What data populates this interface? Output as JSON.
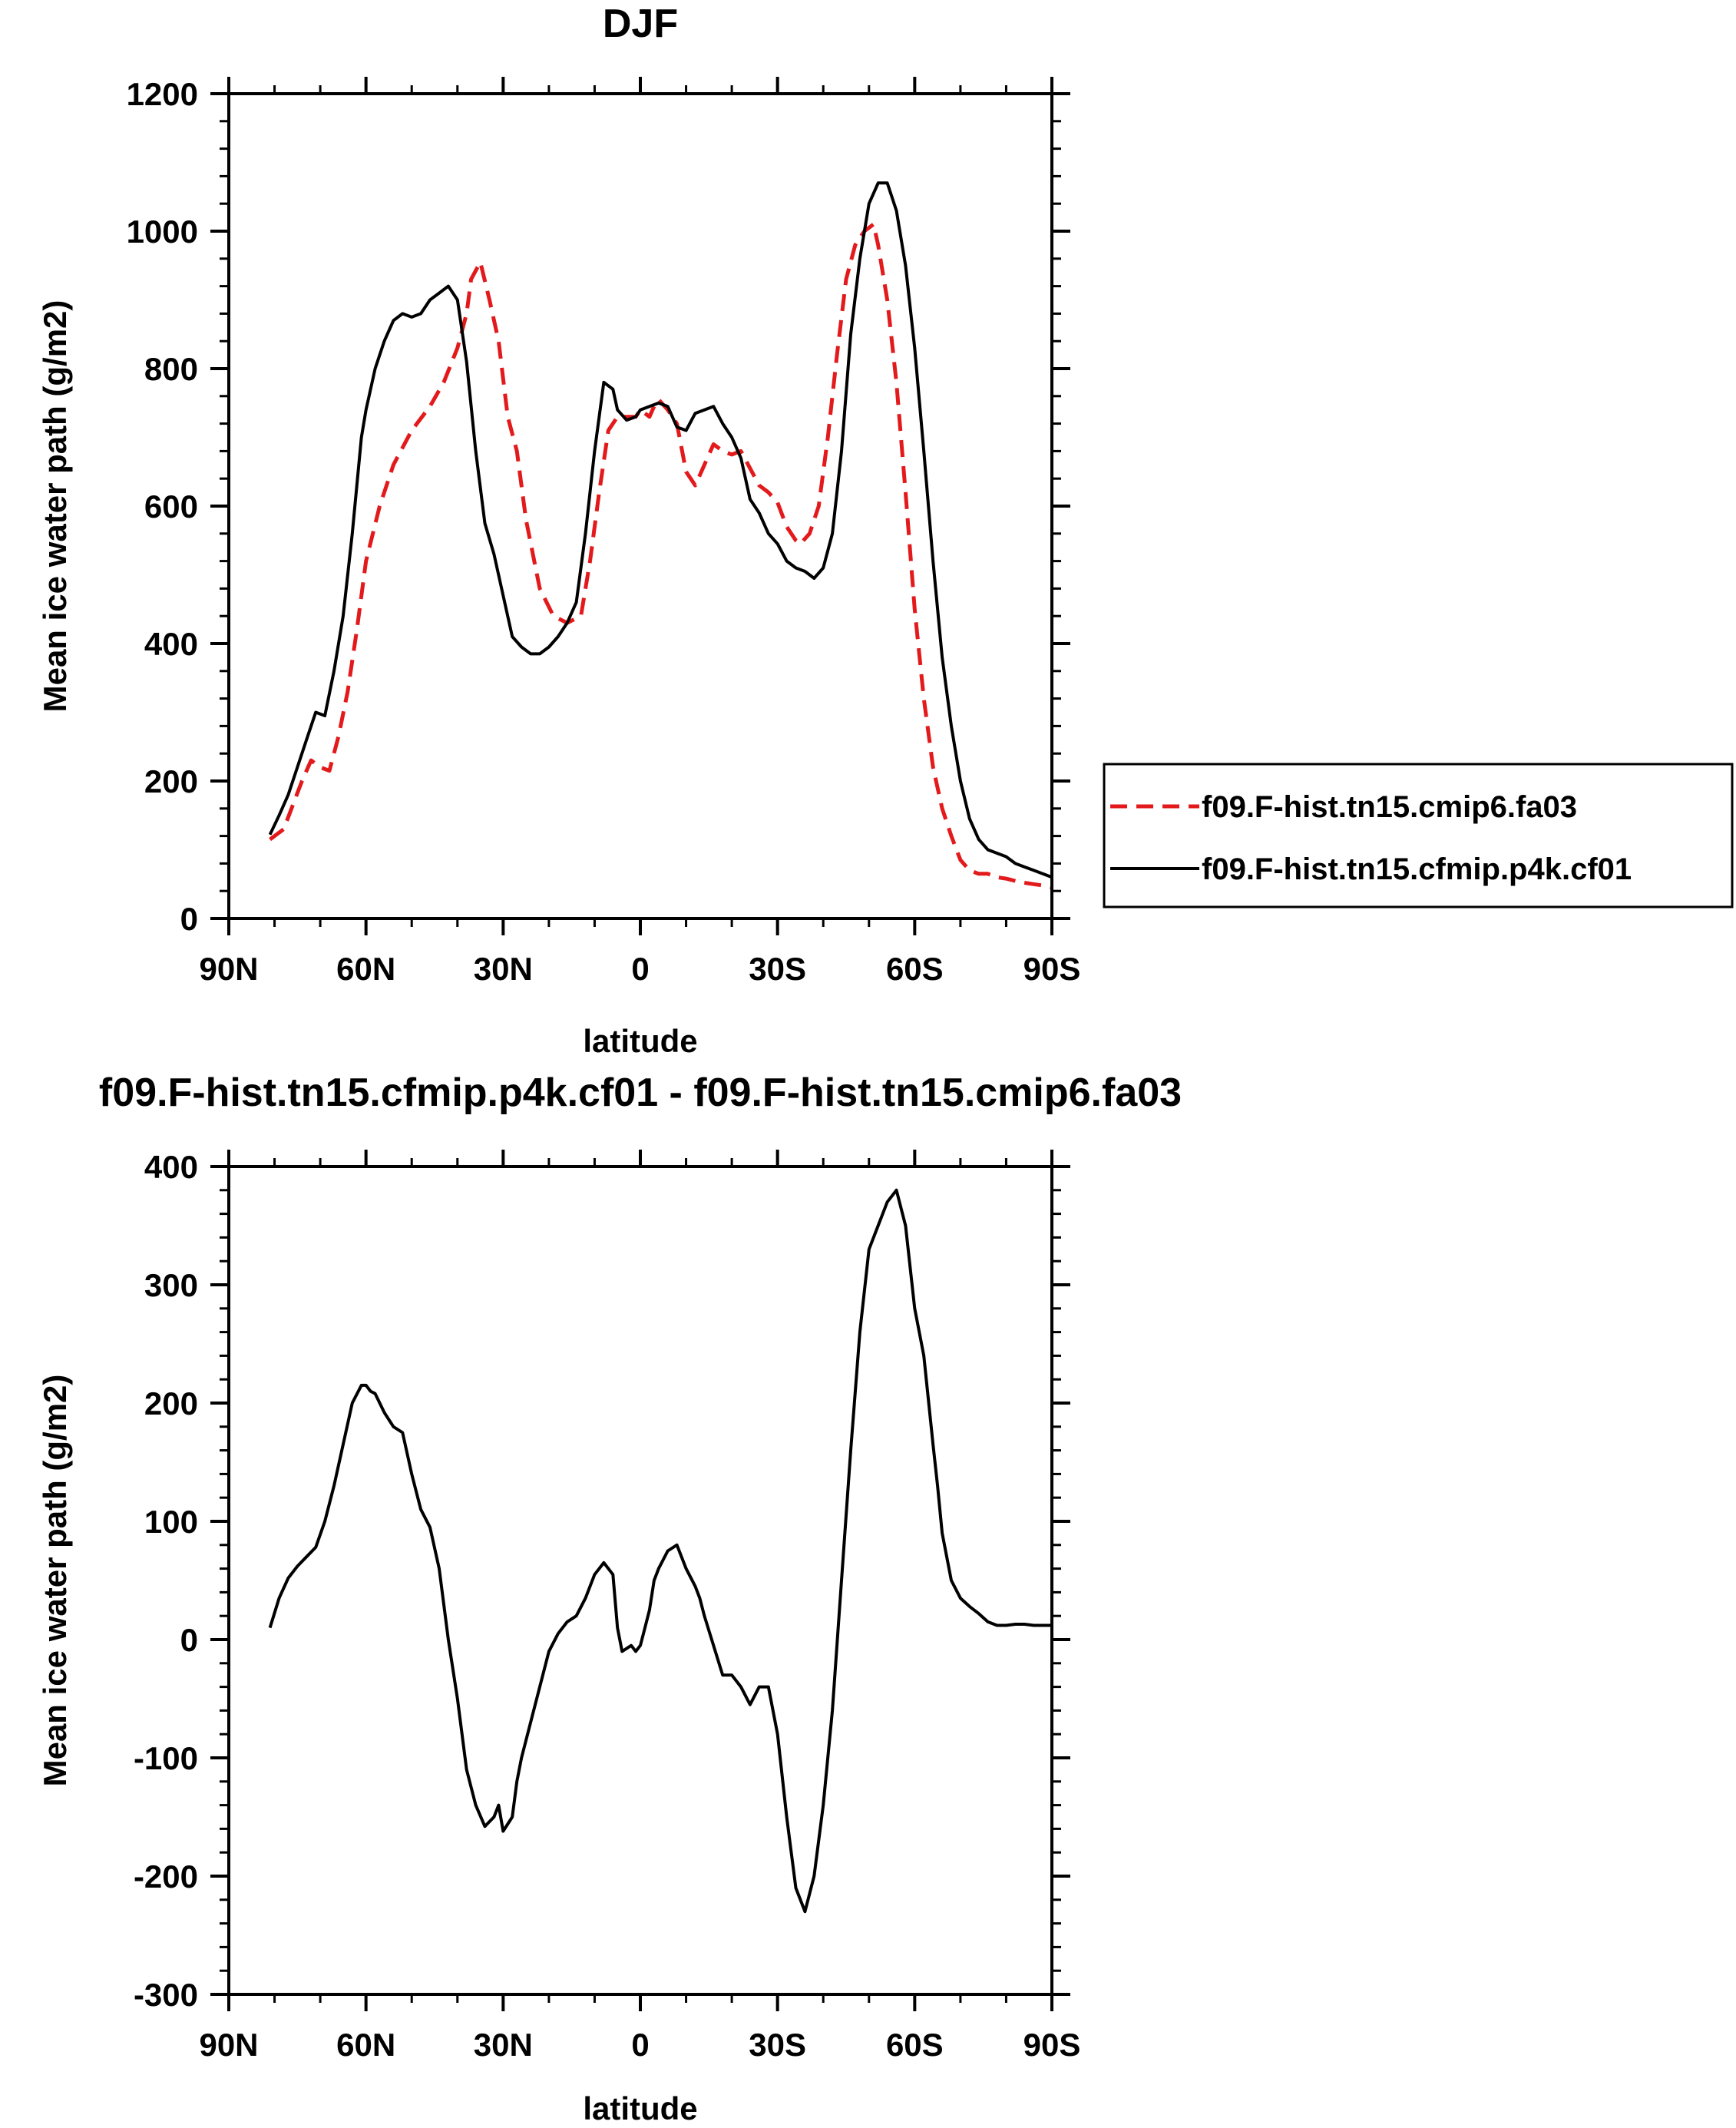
{
  "chart_data": [
    {
      "type": "line",
      "title": "DJF",
      "xlabel": "latitude",
      "ylabel": "Mean ice water path (g/m2)",
      "x_direction": "descending (90N to 90S)",
      "xlim": [
        90,
        -90
      ],
      "ylim": [
        0,
        1200
      ],
      "xticks": [
        90,
        60,
        30,
        0,
        -30,
        -60,
        -90
      ],
      "xtick_labels": [
        "90N",
        "60N",
        "30N",
        "0",
        "30S",
        "60S",
        "90S"
      ],
      "yticks": [
        0,
        200,
        400,
        600,
        800,
        1000,
        1200
      ],
      "ytick_labels": [
        "0",
        "200",
        "400",
        "600",
        "800",
        "1000",
        "1200"
      ],
      "legend_position": "right",
      "series": [
        {
          "name": "f09.F-hist.tn15.cmip6.fa03",
          "color": "#e31a1c",
          "dash": "dashed",
          "x": [
            81,
            78,
            76,
            74,
            72,
            70,
            68,
            66,
            64,
            62,
            60,
            57,
            54,
            50,
            46,
            43,
            40,
            38,
            37,
            35,
            33,
            31,
            29,
            27,
            25,
            22,
            19,
            16,
            13,
            11,
            9,
            7,
            5,
            3,
            1,
            0,
            -2,
            -3,
            -4,
            -6,
            -8,
            -10,
            -12,
            -14,
            -16,
            -18,
            -20,
            -22,
            -24,
            -26,
            -28,
            -30,
            -32,
            -34,
            -35,
            -37,
            -39,
            -41,
            -43,
            -45,
            -47,
            -49,
            -51,
            -52,
            -54,
            -56,
            -58,
            -60,
            -62,
            -64,
            -66,
            -68,
            -70,
            -72,
            -74,
            -76,
            -78,
            -80,
            -83,
            -86,
            -88,
            -90
          ],
          "y": [
            115,
            130,
            165,
            200,
            230,
            220,
            215,
            265,
            330,
            420,
            520,
            600,
            660,
            710,
            745,
            780,
            830,
            880,
            930,
            955,
            900,
            840,
            730,
            680,
            580,
            480,
            440,
            430,
            440,
            520,
            620,
            710,
            730,
            730,
            730,
            740,
            730,
            745,
            755,
            740,
            720,
            650,
            630,
            660,
            690,
            680,
            675,
            680,
            655,
            630,
            620,
            605,
            570,
            550,
            545,
            560,
            600,
            700,
            820,
            930,
            980,
            1000,
            1010,
            980,
            900,
            780,
            620,
            450,
            320,
            220,
            160,
            120,
            85,
            70,
            65,
            65,
            60,
            58,
            53,
            50,
            48,
            45
          ]
        },
        {
          "name": "f09.F-hist.tn15.cfmip.p4k.cf01",
          "color": "#000000",
          "dash": "solid",
          "x": [
            81,
            79,
            77,
            75,
            73,
            71,
            69,
            67,
            65,
            63,
            61,
            60,
            58,
            56,
            54,
            52,
            50,
            48,
            46,
            44,
            42,
            40,
            38,
            36,
            34,
            32,
            30,
            28,
            26,
            24,
            22,
            20,
            18,
            16,
            14,
            12,
            10,
            8,
            6,
            5,
            3,
            1,
            0,
            -2,
            -4,
            -6,
            -8,
            -10,
            -12,
            -14,
            -16,
            -18,
            -20,
            -22,
            -24,
            -26,
            -28,
            -30,
            -32,
            -34,
            -36,
            -38,
            -40,
            -42,
            -44,
            -46,
            -48,
            -50,
            -52,
            -54,
            -56,
            -58,
            -60,
            -62,
            -64,
            -66,
            -68,
            -70,
            -72,
            -74,
            -76,
            -78,
            -80,
            -82,
            -84,
            -86,
            -88,
            -90
          ],
          "y": [
            122,
            150,
            180,
            220,
            260,
            300,
            295,
            360,
            440,
            560,
            700,
            740,
            800,
            840,
            870,
            880,
            875,
            880,
            900,
            910,
            920,
            900,
            810,
            680,
            575,
            530,
            470,
            410,
            395,
            385,
            385,
            395,
            410,
            430,
            460,
            560,
            680,
            780,
            770,
            740,
            725,
            730,
            740,
            745,
            750,
            745,
            715,
            710,
            735,
            740,
            745,
            720,
            700,
            670,
            610,
            590,
            560,
            545,
            520,
            510,
            505,
            495,
            510,
            560,
            680,
            850,
            960,
            1040,
            1070,
            1070,
            1030,
            950,
            830,
            680,
            520,
            380,
            280,
            200,
            145,
            115,
            100,
            95,
            90,
            80,
            75,
            70,
            65,
            60
          ]
        }
      ]
    },
    {
      "type": "line",
      "title": "f09.F-hist.tn15.cfmip.p4k.cf01 - f09.F-hist.tn15.cmip6.fa03",
      "xlabel": "latitude",
      "ylabel": "Mean ice water path (g/m2)",
      "x_direction": "descending (90N to 90S)",
      "xlim": [
        90,
        -90
      ],
      "ylim": [
        -300,
        400
      ],
      "xticks": [
        90,
        60,
        30,
        0,
        -30,
        -60,
        -90
      ],
      "xtick_labels": [
        "90N",
        "60N",
        "30N",
        "0",
        "30S",
        "60S",
        "90S"
      ],
      "yticks": [
        -300,
        -200,
        -100,
        0,
        100,
        200,
        300,
        400
      ],
      "ytick_labels": [
        "-300",
        "-200",
        "-100",
        "0",
        "100",
        "200",
        "300",
        "400"
      ],
      "series": [
        {
          "color": "#000000",
          "dash": "solid",
          "x": [
            81,
            79,
            77,
            75,
            73,
            71,
            69,
            67,
            65,
            63,
            61,
            60,
            59,
            58,
            56,
            54,
            52,
            50,
            48,
            46,
            44,
            42,
            40,
            38,
            36,
            34,
            32,
            31,
            30,
            28,
            27,
            26,
            24,
            22,
            20,
            18,
            16,
            14,
            12,
            10,
            8,
            6,
            5,
            4,
            2,
            1,
            0,
            -1,
            -2,
            -3,
            -4,
            -6,
            -8,
            -10,
            -12,
            -13,
            -14,
            -16,
            -18,
            -20,
            -22,
            -24,
            -26,
            -28,
            -30,
            -32,
            -34,
            -36,
            -38,
            -40,
            -42,
            -44,
            -46,
            -48,
            -50,
            -52,
            -54,
            -56,
            -58,
            -60,
            -62,
            -64,
            -65,
            -66,
            -68,
            -70,
            -72,
            -74,
            -76,
            -78,
            -80,
            -82,
            -84,
            -86,
            -88,
            -90
          ],
          "y": [
            10,
            35,
            52,
            62,
            70,
            78,
            100,
            130,
            165,
            200,
            215,
            215,
            210,
            208,
            192,
            180,
            175,
            140,
            110,
            95,
            60,
            0,
            -50,
            -110,
            -140,
            -158,
            -150,
            -140,
            -162,
            -150,
            -120,
            -100,
            -70,
            -40,
            -10,
            5,
            15,
            20,
            35,
            55,
            65,
            55,
            10,
            -10,
            -5,
            -10,
            -5,
            10,
            25,
            50,
            60,
            75,
            80,
            60,
            45,
            35,
            20,
            -5,
            -30,
            -30,
            -40,
            -55,
            -40,
            -40,
            -80,
            -150,
            -210,
            -230,
            -200,
            -140,
            -60,
            50,
            160,
            260,
            330,
            350,
            370,
            380,
            350,
            280,
            240,
            165,
            130,
            90,
            50,
            35,
            28,
            22,
            15,
            12,
            12,
            13,
            13,
            12,
            12,
            12
          ]
        }
      ]
    }
  ]
}
